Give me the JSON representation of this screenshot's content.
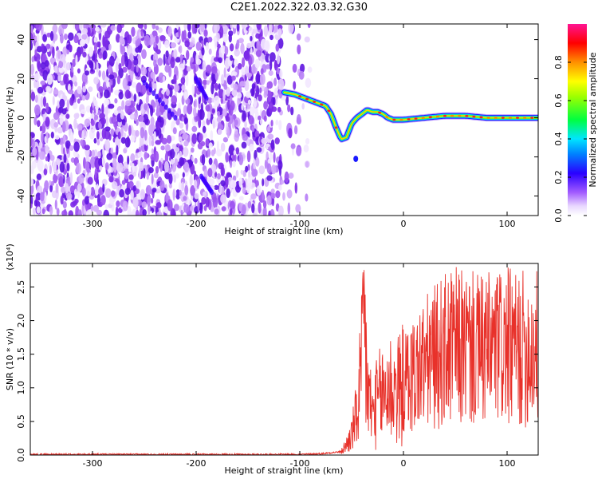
{
  "title": "C2E1.2022.322.03.32.G30",
  "chart_data": [
    {
      "type": "heatmap",
      "xlabel": "Height of straight line (km)",
      "ylabel": "Frequency (Hz)",
      "xlim": [
        -360,
        130
      ],
      "ylim": [
        -50,
        48
      ],
      "xticks": [
        -300,
        -200,
        -100,
        0,
        100
      ],
      "yticks": [
        -40,
        -20,
        0,
        20,
        40
      ],
      "noise_region_km": [
        -360,
        -90
      ],
      "signal_track": {
        "x": [
          -115,
          -105,
          -95,
          -85,
          -75,
          -70,
          -65,
          -60,
          -55,
          -50,
          -45,
          -40,
          -35,
          -30,
          -25,
          -20,
          -15,
          -10,
          0,
          20,
          40,
          60,
          80,
          100,
          120,
          130
        ],
        "y": [
          13,
          12,
          10,
          8,
          6,
          2,
          -5,
          -11,
          -10,
          -3,
          0,
          2,
          4,
          3,
          3,
          2,
          0,
          -1,
          -1,
          0,
          1,
          1,
          0,
          0,
          0,
          0
        ]
      },
      "colorbar": {
        "label": "Normalized spectral amplitude",
        "range": [
          0,
          1
        ],
        "ticks": [
          0.0,
          0.2,
          0.4,
          0.6,
          0.8
        ],
        "colors": [
          "#ffffff",
          "#d8b4ff",
          "#8a2be2",
          "#0000ff",
          "#00ffff",
          "#00ff00",
          "#ffff00",
          "#ff8c00",
          "#ff0000",
          "#ff1493"
        ]
      }
    },
    {
      "type": "line",
      "xlabel": "Height of straight line (km)",
      "ylabel": "SNR (10 * v/v)",
      "yunit_multiplier": "(x10⁴)",
      "xlim": [
        -360,
        130
      ],
      "ylim": [
        0,
        2.85
      ],
      "xticks": [
        -300,
        -200,
        -100,
        0,
        100
      ],
      "yticks": [
        0.0,
        0.5,
        1.0,
        1.5,
        2.0,
        2.5
      ],
      "color": "#e8312a",
      "series": [
        {
          "x": [
            -360,
            -300,
            -200,
            -100,
            -80,
            -60,
            -55,
            -50,
            -45,
            -40,
            -38,
            -35,
            -30,
            -25,
            -20,
            -15,
            -10,
            -5,
            0,
            10,
            20,
            30,
            40,
            50,
            60,
            70,
            80,
            90,
            100,
            110,
            120,
            130
          ],
          "y": [
            0.01,
            0.01,
            0.01,
            0.01,
            0.02,
            0.05,
            0.15,
            0.3,
            0.6,
            1.3,
            2.0,
            1.0,
            0.6,
            0.8,
            0.9,
            1.0,
            1.0,
            0.95,
            1.05,
            1.2,
            1.35,
            1.45,
            1.55,
            1.6,
            1.6,
            1.55,
            1.55,
            1.6,
            1.6,
            1.55,
            1.6,
            1.6
          ]
        }
      ]
    }
  ]
}
